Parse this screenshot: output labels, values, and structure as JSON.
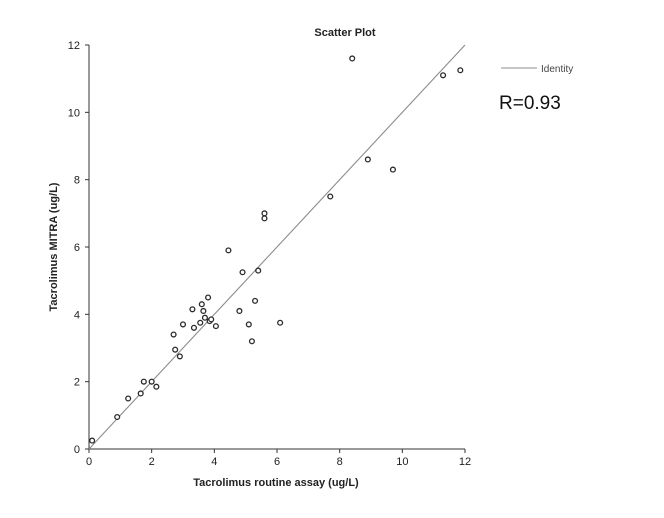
{
  "chart_data": {
    "type": "scatter",
    "title": "Scatter Plot",
    "xlabel": "Tacrolimus routine assay (ug/L)",
    "ylabel": "Tacrolimus MITRA (ug/L)",
    "xlim": [
      0,
      12
    ],
    "ylim": [
      0,
      12
    ],
    "xticks": [
      "0",
      "2",
      "4",
      "6",
      "8",
      "10",
      "12"
    ],
    "yticks": [
      "0",
      "2",
      "4",
      "6",
      "8",
      "10",
      "12"
    ],
    "grid": false,
    "legend": {
      "placement": "top-right",
      "entries": [
        "Identity"
      ]
    },
    "identity_line": {
      "from": [
        0,
        0
      ],
      "to": [
        12,
        12
      ]
    },
    "annotation": "R=0.93",
    "points": [
      {
        "x": 0.1,
        "y": 0.25
      },
      {
        "x": 0.9,
        "y": 0.95
      },
      {
        "x": 1.25,
        "y": 1.5
      },
      {
        "x": 1.65,
        "y": 1.65
      },
      {
        "x": 1.75,
        "y": 2.0
      },
      {
        "x": 2.0,
        "y": 2.0
      },
      {
        "x": 2.15,
        "y": 1.85
      },
      {
        "x": 2.7,
        "y": 3.4
      },
      {
        "x": 2.75,
        "y": 2.95
      },
      {
        "x": 2.9,
        "y": 2.75
      },
      {
        "x": 3.0,
        "y": 3.7
      },
      {
        "x": 3.3,
        "y": 4.15
      },
      {
        "x": 3.35,
        "y": 3.6
      },
      {
        "x": 3.55,
        "y": 3.75
      },
      {
        "x": 3.6,
        "y": 4.3
      },
      {
        "x": 3.65,
        "y": 4.1
      },
      {
        "x": 3.7,
        "y": 3.9
      },
      {
        "x": 3.8,
        "y": 4.5
      },
      {
        "x": 3.85,
        "y": 3.8
      },
      {
        "x": 3.9,
        "y": 3.85
      },
      {
        "x": 4.05,
        "y": 3.65
      },
      {
        "x": 4.45,
        "y": 5.9
      },
      {
        "x": 4.8,
        "y": 4.1
      },
      {
        "x": 4.9,
        "y": 5.25
      },
      {
        "x": 5.1,
        "y": 3.7
      },
      {
        "x": 5.2,
        "y": 3.2
      },
      {
        "x": 5.3,
        "y": 4.4
      },
      {
        "x": 5.4,
        "y": 5.3
      },
      {
        "x": 5.6,
        "y": 7.0
      },
      {
        "x": 5.6,
        "y": 6.85
      },
      {
        "x": 6.1,
        "y": 3.75
      },
      {
        "x": 7.7,
        "y": 7.5
      },
      {
        "x": 8.4,
        "y": 11.6
      },
      {
        "x": 8.9,
        "y": 8.6
      },
      {
        "x": 9.7,
        "y": 8.3
      },
      {
        "x": 11.3,
        "y": 11.1
      },
      {
        "x": 11.85,
        "y": 11.25
      }
    ]
  }
}
